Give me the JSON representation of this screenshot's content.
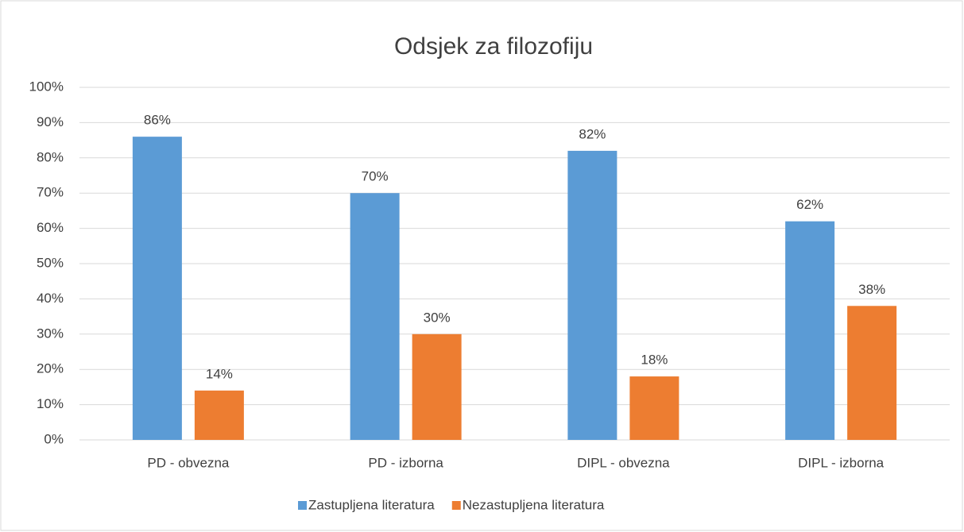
{
  "chart_data": {
    "type": "bar",
    "title": "Odsjek za filozofiju",
    "categories": [
      "PD - obvezna",
      "PD - izborna",
      "DIPL - obvezna",
      "DIPL - izborna"
    ],
    "series": [
      {
        "name": "Zastupljena literatura",
        "color": "#5b9bd5",
        "values": [
          86,
          70,
          82,
          62
        ],
        "value_labels": [
          "86%",
          "70%",
          "82%",
          "62%"
        ]
      },
      {
        "name": "Nezastupljena literatura",
        "color": "#ed7d31",
        "values": [
          14,
          30,
          18,
          38
        ],
        "value_labels": [
          "14%",
          "30%",
          "18%",
          "38%"
        ]
      }
    ],
    "ylim": [
      0,
      100
    ],
    "yticks": [
      {
        "value": 0,
        "label": "0%"
      },
      {
        "value": 10,
        "label": "10%"
      },
      {
        "value": 20,
        "label": "20%"
      },
      {
        "value": 30,
        "label": "30%"
      },
      {
        "value": 40,
        "label": "40%"
      },
      {
        "value": 50,
        "label": "50%"
      },
      {
        "value": 60,
        "label": "60%"
      },
      {
        "value": 70,
        "label": "70%"
      },
      {
        "value": 80,
        "label": "80%"
      },
      {
        "value": 90,
        "label": "90%"
      },
      {
        "value": 100,
        "label": "100%"
      }
    ],
    "grid": true,
    "legend": "bottom"
  }
}
